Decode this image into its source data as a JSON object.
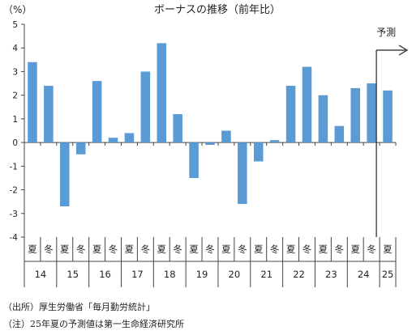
{
  "chart_data": {
    "type": "bar",
    "title": "ボーナスの推移（前年比）",
    "ylabel": "（%）",
    "ylim": [
      -4,
      5
    ],
    "yticks": [
      5,
      4,
      3,
      2,
      1,
      0,
      -1,
      -2,
      -3,
      -4
    ],
    "grid": false,
    "legend": "none",
    "color": "#5B9BD5",
    "categories": [
      "夏",
      "冬",
      "夏",
      "冬",
      "夏",
      "冬",
      "夏",
      "冬",
      "夏",
      "冬",
      "夏",
      "冬",
      "夏",
      "冬",
      "夏",
      "冬",
      "夏",
      "冬",
      "夏",
      "冬",
      "夏",
      "冬",
      "夏"
    ],
    "values": [
      3.4,
      2.4,
      -2.7,
      -0.5,
      2.6,
      0.2,
      0.4,
      3.0,
      4.2,
      1.2,
      -1.5,
      -0.1,
      0.5,
      -2.6,
      -0.8,
      0.1,
      2.4,
      3.2,
      2.0,
      0.7,
      2.3,
      2.5,
      2.2
    ],
    "year_groups": [
      {
        "label": "14",
        "span": 2
      },
      {
        "label": "15",
        "span": 2
      },
      {
        "label": "16",
        "span": 2
      },
      {
        "label": "17",
        "span": 2
      },
      {
        "label": "18",
        "span": 2
      },
      {
        "label": "19",
        "span": 2
      },
      {
        "label": "20",
        "span": 2
      },
      {
        "label": "21",
        "span": 2
      },
      {
        "label": "22",
        "span": 2
      },
      {
        "label": "23",
        "span": 2
      },
      {
        "label": "24",
        "span": 2
      },
      {
        "label": "25",
        "span": 1
      }
    ],
    "forecast_label": "予測",
    "forecast_start_index": 22
  },
  "notes": {
    "source": "（出所）厚生労働省「毎月勤労統計」",
    "remark": "（注）25年夏の予測値は第一生命経済研究所"
  }
}
